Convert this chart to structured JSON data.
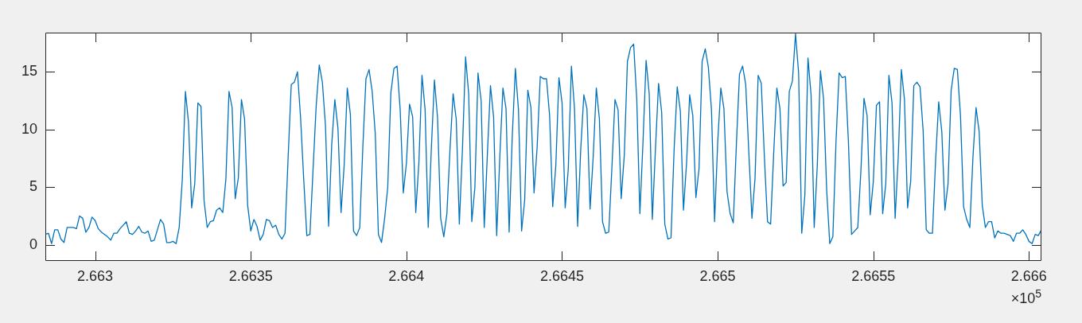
{
  "chart_data": {
    "type": "line",
    "annotations": [
      "×10$^{5}$"
    ],
    "x": [
      2.66284,
      2.66285,
      2.66286,
      2.66287,
      2.66288,
      2.66289,
      2.6629,
      2.66291,
      2.66292,
      2.66293,
      2.66294,
      2.66295,
      2.66296,
      2.66297,
      2.66298,
      2.66299,
      2.663,
      2.66301,
      2.66302,
      2.66303,
      2.66304,
      2.66305,
      2.66306,
      2.66307,
      2.66308,
      2.66309,
      2.6631,
      2.66311,
      2.66312,
      2.66313,
      2.66314,
      2.66315,
      2.66316,
      2.66317,
      2.66318,
      2.66319,
      2.6632,
      2.66321,
      2.66322,
      2.66323,
      2.66324,
      2.66325,
      2.66326,
      2.66327,
      2.66328,
      2.66329,
      2.6633,
      2.66331,
      2.66332,
      2.66333,
      2.66334,
      2.66335,
      2.66336,
      2.66337,
      2.66338,
      2.66339,
      2.6634,
      2.66341,
      2.66342,
      2.66343,
      2.66344,
      2.66345,
      2.66346,
      2.66347,
      2.66348,
      2.66349,
      2.6635,
      2.66351,
      2.66352,
      2.66353,
      2.66354,
      2.66355,
      2.66356,
      2.66357,
      2.66358,
      2.66359,
      2.6636,
      2.66361,
      2.66362,
      2.66363,
      2.66364,
      2.66365,
      2.66366,
      2.66367,
      2.66368,
      2.66369,
      2.6637,
      2.66371,
      2.66372,
      2.66373,
      2.66374,
      2.66375,
      2.66376,
      2.66377,
      2.66378,
      2.66379,
      2.6638,
      2.66381,
      2.66382,
      2.66383,
      2.66384,
      2.66385,
      2.66386,
      2.66387,
      2.66388,
      2.66389,
      2.6639,
      2.66391,
      2.66392,
      2.66393,
      2.66394,
      2.66395,
      2.66396,
      2.66397,
      2.66398,
      2.66399,
      2.664,
      2.66401,
      2.66402,
      2.66403,
      2.66404,
      2.66405,
      2.66406,
      2.66407,
      2.66408,
      2.66409,
      2.6641,
      2.66411,
      2.66412,
      2.66413,
      2.66414,
      2.66415,
      2.66416,
      2.66417,
      2.66418,
      2.66419,
      2.6642,
      2.66421,
      2.66422,
      2.66423,
      2.66424,
      2.66425,
      2.66426,
      2.66427,
      2.66428,
      2.66429,
      2.6643,
      2.66431,
      2.66432,
      2.66433,
      2.66434,
      2.66435,
      2.66436,
      2.66437,
      2.66438,
      2.66439,
      2.6644,
      2.66441,
      2.66442,
      2.66443,
      2.66444,
      2.66445,
      2.66446,
      2.66447,
      2.66448,
      2.66449,
      2.6645,
      2.66451,
      2.66452,
      2.66453,
      2.66454,
      2.66455,
      2.66456,
      2.66457,
      2.66458,
      2.66459,
      2.6646,
      2.66461,
      2.66462,
      2.66463,
      2.66464,
      2.66465,
      2.66466,
      2.66467,
      2.66468,
      2.66469,
      2.6647,
      2.66471,
      2.66472,
      2.66473,
      2.66474,
      2.66475,
      2.66476,
      2.66477,
      2.66478,
      2.66479,
      2.6648,
      2.66481,
      2.66482,
      2.66483,
      2.66484,
      2.66485,
      2.66486,
      2.66487,
      2.66488,
      2.66489,
      2.6649,
      2.66491,
      2.66492,
      2.66493,
      2.66494,
      2.66495,
      2.66496,
      2.66497,
      2.66498,
      2.66499,
      2.665,
      2.66501,
      2.66502,
      2.66503,
      2.66504,
      2.66505,
      2.66506,
      2.66507,
      2.66508,
      2.66509,
      2.6651,
      2.66511,
      2.66512,
      2.66513,
      2.66514,
      2.66515,
      2.66516,
      2.66517,
      2.66518,
      2.66519,
      2.6652,
      2.66521,
      2.66522,
      2.66523,
      2.66524,
      2.66525,
      2.66526,
      2.66527,
      2.66528,
      2.66529,
      2.6653,
      2.66531,
      2.66532,
      2.66533,
      2.66534,
      2.66535,
      2.66536,
      2.66537,
      2.66538,
      2.66539,
      2.6654,
      2.66541,
      2.66542,
      2.66543,
      2.66544,
      2.66545,
      2.66546,
      2.66547,
      2.66548,
      2.66549,
      2.6655,
      2.66551,
      2.66552,
      2.66553,
      2.66554,
      2.66555,
      2.66556,
      2.66557,
      2.66558,
      2.66559,
      2.6656,
      2.66561,
      2.66562,
      2.66563,
      2.66564,
      2.66565,
      2.66566,
      2.66567,
      2.66568,
      2.66569,
      2.6657,
      2.66571,
      2.66572,
      2.66573,
      2.66574,
      2.66575,
      2.66576,
      2.66577,
      2.66578,
      2.66579,
      2.6658,
      2.66581,
      2.66582,
      2.66583,
      2.66584,
      2.66585,
      2.66586,
      2.66587,
      2.66588,
      2.66589,
      2.6659,
      2.66591,
      2.66592,
      2.66593,
      2.66594,
      2.66595,
      2.66596,
      2.66597,
      2.66598,
      2.66599,
      2.666,
      2.66601,
      2.66602,
      2.66603,
      2.66604
    ],
    "series": [
      {
        "color": "#0072bd",
        "values": [
          0.9,
          1.0,
          0.1,
          1.3,
          1.3,
          0.5,
          0.2,
          1.5,
          1.5,
          1.5,
          1.4,
          2.5,
          2.3,
          1.1,
          1.5,
          2.4,
          2.1,
          1.4,
          1.1,
          0.9,
          0.7,
          0.4,
          1.0,
          1.0,
          1.4,
          1.7,
          2.0,
          1.0,
          0.9,
          1.2,
          1.6,
          1.1,
          1.0,
          1.2,
          0.3,
          0.4,
          1.3,
          2.2,
          1.8,
          0.2,
          0.2,
          0.3,
          0.1,
          1.5,
          5.7,
          13.3,
          10.6,
          3.2,
          5.3,
          12.3,
          12.0,
          3.8,
          1.5,
          2.0,
          2.1,
          3.0,
          3.2,
          2.8,
          5.7,
          13.3,
          11.9,
          4.0,
          5.8,
          12.6,
          10.9,
          3.4,
          1.2,
          2.2,
          1.6,
          0.4,
          0.9,
          2.2,
          2.1,
          1.5,
          1.7,
          0.9,
          0.5,
          1.0,
          7.6,
          13.9,
          14.1,
          15.0,
          11.0,
          5.7,
          0.8,
          0.9,
          6.5,
          12.0,
          15.6,
          14.1,
          10.3,
          1.6,
          8.7,
          12.6,
          10.1,
          2.8,
          6.9,
          13.6,
          11.3,
          1.2,
          0.8,
          1.5,
          8.5,
          14.4,
          15.2,
          13.3,
          9.6,
          0.9,
          0.2,
          2.3,
          5.0,
          13.2,
          15.3,
          15.5,
          11.7,
          4.5,
          7.1,
          12.2,
          11.1,
          2.8,
          7.1,
          14.7,
          11.7,
          1.5,
          8.3,
          14.3,
          11.0,
          2.3,
          0.7,
          2.7,
          8.3,
          13.1,
          10.9,
          1.8,
          8.3,
          16.3,
          13.1,
          2.0,
          5.0,
          14.9,
          12.5,
          1.5,
          7.8,
          13.8,
          11.1,
          0.8,
          7.6,
          13.6,
          11.8,
          1.1,
          9.4,
          15.3,
          11.7,
          1.2,
          3.9,
          13.4,
          11.9,
          4.5,
          8.5,
          14.6,
          14.4,
          14.4,
          11.2,
          3.3,
          6.9,
          14.5,
          12.3,
          3.2,
          6.6,
          15.5,
          11.8,
          1.6,
          8.3,
          13.0,
          11.8,
          3.1,
          7.6,
          13.6,
          10.9,
          2.0,
          1.0,
          1.1,
          6.6,
          12.6,
          11.7,
          4.0,
          7.8,
          15.9,
          17.1,
          17.4,
          12.6,
          2.7,
          8.9,
          16.0,
          13.1,
          2.2,
          8.3,
          14.0,
          11.5,
          1.8,
          0.5,
          0.6,
          8.3,
          13.7,
          11.6,
          3.0,
          7.1,
          13.0,
          11.2,
          4.1,
          6.6,
          15.9,
          17.0,
          15.4,
          11.7,
          2.0,
          8.9,
          13.6,
          11.8,
          4.6,
          2.7,
          1.9,
          8.7,
          14.8,
          15.5,
          13.9,
          8.0,
          2.3,
          5.8,
          14.7,
          14.0,
          7.6,
          2.0,
          1.8,
          8.0,
          13.6,
          11.8,
          5.1,
          5.4,
          13.3,
          14.2,
          18.3,
          14.9,
          1.0,
          4.3,
          16.2,
          13.0,
          1.5,
          6.9,
          15.1,
          12.7,
          4.8,
          0.1,
          0.7,
          8.9,
          14.9,
          14.5,
          14.6,
          8.9,
          0.9,
          1.2,
          1.5,
          6.4,
          12.7,
          11.2,
          2.6,
          5.5,
          12.1,
          12.4,
          2.7,
          5.3,
          14.7,
          12.3,
          2.3,
          7.6,
          15.2,
          12.6,
          3.2,
          5.5,
          13.8,
          14.1,
          13.7,
          9.9,
          1.3,
          1.0,
          1.0,
          7.3,
          12.4,
          9.8,
          3.0,
          5.3,
          13.4,
          15.3,
          15.2,
          11.2,
          3.3,
          2.2,
          1.5,
          7.6,
          11.9,
          9.8,
          3.4,
          1.5,
          2.0,
          2.0,
          0.6,
          1.2,
          1.0,
          1.0,
          0.9,
          0.8,
          0.3,
          1.0,
          1.0,
          1.3,
          0.9,
          0.3,
          0.1,
          0.9,
          0.8,
          1.3
        ]
      }
    ],
    "xlim": [
      2.66284,
      2.66604
    ],
    "xticks": [
      2.663,
      2.6635,
      2.664,
      2.6645,
      2.665,
      2.6655,
      2.666
    ],
    "ylim": [
      -1.4,
      18.4
    ],
    "yticks": [
      0,
      5,
      10,
      15
    ],
    "marker": "none",
    "line_style": "solid"
  }
}
